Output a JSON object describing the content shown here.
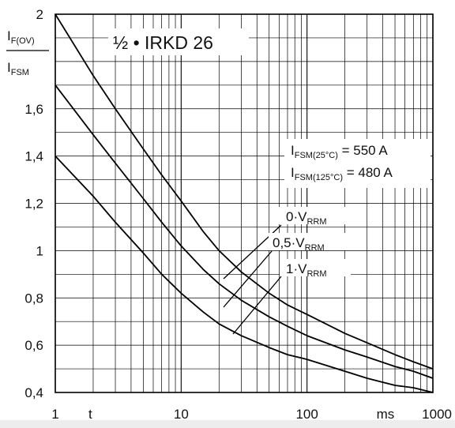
{
  "chart_data": {
    "type": "line",
    "title": "½ • IRKD 26",
    "xscale": "log",
    "xlim": [
      1,
      1000
    ],
    "ylim": [
      0.4,
      2.0
    ],
    "grid": true,
    "x_ticks": [
      {
        "value": 1,
        "label": "1"
      },
      {
        "value": 10,
        "label": "10"
      },
      {
        "value": 100,
        "label": "100"
      },
      {
        "value": 1000,
        "label": "1000"
      }
    ],
    "x_extra_labels": [
      {
        "value": 1.9,
        "label": "t"
      },
      {
        "value": 420,
        "label": "ms"
      }
    ],
    "y_ticks": [
      {
        "value": 0.4,
        "label": "0,4"
      },
      {
        "value": 0.6,
        "label": "0,6"
      },
      {
        "value": 0.8,
        "label": "0,8"
      },
      {
        "value": 1.0,
        "label": "1"
      },
      {
        "value": 1.2,
        "label": "1,2"
      },
      {
        "value": 1.4,
        "label": "1,4"
      },
      {
        "value": 1.6,
        "label": "1,6"
      },
      {
        "value": 2.0,
        "label": "2"
      }
    ],
    "ylabel": {
      "num_main": "I",
      "num_sub": "F(OV)",
      "den_main": "I",
      "den_sub": "FSM"
    },
    "annotations": [
      {
        "main": "I",
        "sub": "FSM(25°C)",
        "tail": " = 550 A"
      },
      {
        "main": "I",
        "sub": "FSM(125°C)",
        "tail": " = 480 A"
      }
    ],
    "series": [
      {
        "name": "0·VRRM",
        "label_main": "0·V",
        "label_sub": "RRM",
        "x": [
          1,
          2,
          3,
          5,
          7,
          10,
          15,
          20,
          30,
          50,
          70,
          100,
          200,
          300,
          500,
          700,
          1000
        ],
        "y": [
          2.0,
          1.74,
          1.6,
          1.43,
          1.32,
          1.21,
          1.08,
          1.0,
          0.91,
          0.82,
          0.77,
          0.73,
          0.65,
          0.61,
          0.56,
          0.53,
          0.5
        ]
      },
      {
        "name": "0,5·VRRM",
        "label_main": "0,5·V",
        "label_sub": "RRM",
        "x": [
          1,
          2,
          3,
          5,
          7,
          10,
          15,
          20,
          30,
          50,
          70,
          100,
          200,
          300,
          500,
          700,
          1000
        ],
        "y": [
          1.7,
          1.49,
          1.37,
          1.22,
          1.12,
          1.02,
          0.92,
          0.86,
          0.79,
          0.72,
          0.68,
          0.64,
          0.58,
          0.55,
          0.51,
          0.49,
          0.46
        ]
      },
      {
        "name": "1·VRRM",
        "label_main": "1·V",
        "label_sub": "RRM",
        "x": [
          1,
          2,
          3,
          5,
          7,
          10,
          15,
          20,
          30,
          50,
          70,
          100,
          200,
          300,
          500,
          700,
          1000
        ],
        "y": [
          1.4,
          1.23,
          1.12,
          0.99,
          0.9,
          0.82,
          0.74,
          0.69,
          0.64,
          0.59,
          0.56,
          0.54,
          0.49,
          0.46,
          0.43,
          0.42,
          0.4
        ]
      }
    ]
  }
}
